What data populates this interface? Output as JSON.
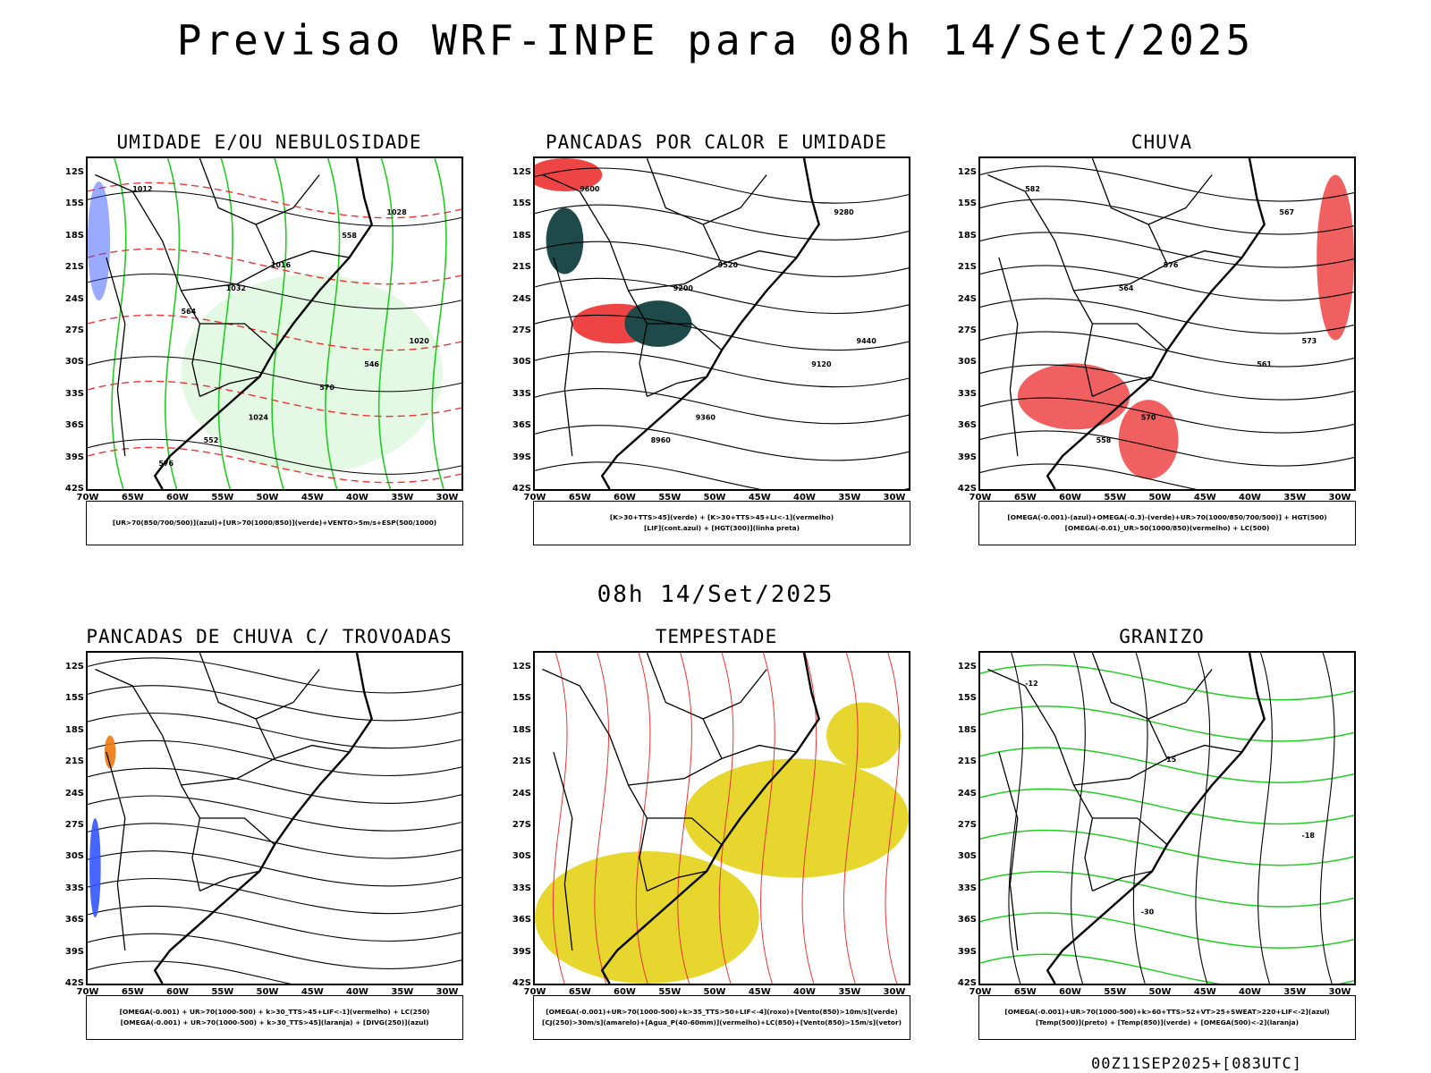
{
  "title": "Previsao WRF-INPE  para 08h 14/Set/2025",
  "middle_label": "08h 14/Set/2025",
  "footer": "00Z11SEP2025+[083UTC]",
  "lat_ticks": [
    "12S",
    "15S",
    "18S",
    "21S",
    "24S",
    "27S",
    "30S",
    "33S",
    "36S",
    "39S",
    "42S"
  ],
  "lon_ticks": [
    "70W",
    "65W",
    "60W",
    "55W",
    "50W",
    "45W",
    "40W",
    "35W",
    "30W"
  ],
  "colors": {
    "contour_black": "#000000",
    "humidity_green": "#22cc22",
    "humidity_blue": "#3355ff",
    "thickness_red": "#ee3333",
    "red_fill": "#ee4444",
    "dark_teal": "#1f4a4a",
    "yellow_fill": "#e6d62e",
    "orange": "#ee7711"
  },
  "panels": [
    {
      "title": "UMIDADE E/OU NEBULOSIDADE",
      "legend": [
        "[UR>70(850/700/500)](azul)+[UR>70(1000/850)](verde)+VENTO>5m/s+ESP(500/1000)"
      ],
      "contour_labels": [
        "1012",
        "1016",
        "1020",
        "1024",
        "1028",
        "1032",
        "546",
        "552",
        "558",
        "564",
        "570",
        "576"
      ]
    },
    {
      "title": "PANCADAS POR CALOR E UMIDADE",
      "legend": [
        "[K>30+TTS>45](verde) + [K>30+TTS>45+LI<-1](vermelho)",
        "[LIF](cont.azul) + [HGT(300)](linha preta)"
      ],
      "contour_labels": [
        "9600",
        "9520",
        "9440",
        "9360",
        "9280",
        "9200",
        "9120",
        "8960"
      ]
    },
    {
      "title": "CHUVA",
      "legend": [
        "[OMEGA(-0.001)-(azul)+OMEGA(-0.3)-(verde)+UR>70(1000/850/700/500)] + HGT(500)",
        "[OMEGA(-0.01)_UR>50(1000/850)(vermelho) + LC(500)"
      ],
      "contour_labels": [
        "582",
        "576",
        "573",
        "570",
        "567",
        "564",
        "561",
        "558"
      ]
    },
    {
      "title": "PANCADAS DE CHUVA C/ TROVOADAS",
      "legend": [
        "[OMEGA(-0.001) + UR>70(1000-500) + k>30_TTS>45+LIF<-1](vermelho) + LC(250)",
        "[OMEGA(-0.001) + UR>70(1000-500) + k>30_TTS>45](laranja) + [DIVG(250)](azul)"
      ],
      "contour_labels": []
    },
    {
      "title": "TEMPESTADE",
      "legend": [
        "[OMEGA(-0.001)+UR>70(1000-500)+k>35_TTS>50+LIF<-4](roxo)+[Vento(850)>10m/s](verde)",
        "[CJ(250)>30m/s](amarelo)+[Agua_P(40-60mm)](vermelho)+LC(850)+[Vento(850)>15m/s](vetor)"
      ],
      "contour_labels": []
    },
    {
      "title": "GRANIZO",
      "legend": [
        "[OMEGA(-0.001)+UR>70(1000-500)+k>60+TTS>52+VT>25+SWEAT>220+LIF<-2](azul)",
        "[Temp(500)](preto) + [Temp(850)](verde) + [OMEGA(500)<-2](laranja)"
      ],
      "contour_labels": [
        "-12",
        "-15",
        "-18",
        "-30"
      ]
    }
  ]
}
